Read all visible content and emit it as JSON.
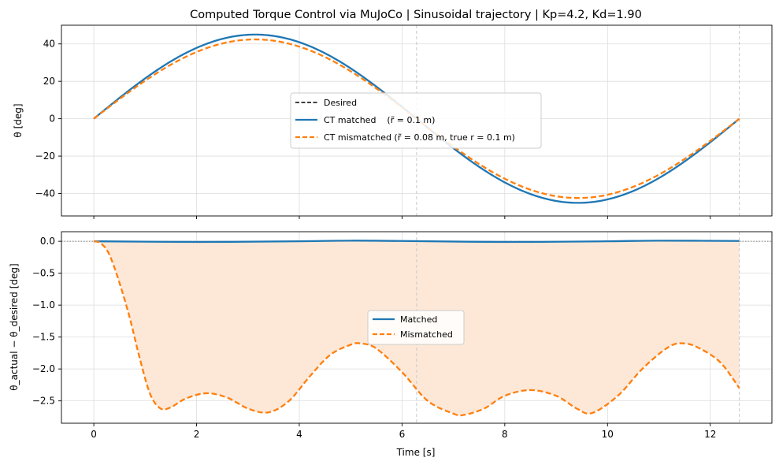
{
  "chart_data": [
    {
      "type": "line",
      "title": "Computed Torque Control via MuJoCo  |  Sinusoidal trajectory  |  Kp=4.2, Kd=1.90",
      "ylabel": "θ  [deg]",
      "xlabel": "",
      "xlim": [
        -0.63,
        13.2
      ],
      "ylim": [
        -52,
        50
      ],
      "xticks": [
        0,
        2,
        4,
        6,
        8,
        10,
        12
      ],
      "yticks": [
        -40,
        -20,
        0,
        20,
        40
      ],
      "grid": true,
      "legend_position": "center",
      "vlines": [
        6.283,
        12.566
      ],
      "series": [
        {
          "name": "Desired",
          "color": "#000000",
          "style": "dashed",
          "values": "45*sin(t/2)"
        },
        {
          "name": "CT matched    (r̃ = 0.1 m)",
          "color": "#1f77b4",
          "style": "solid"
        },
        {
          "name": "CT mismatched (r̃ = 0.08 m, true r = 0.1 m)",
          "color": "#ff7f0e",
          "style": "dashed"
        }
      ],
      "amplitude_desired": 45,
      "amplitude_mismatched": 42.4,
      "x_end": 12.566
    },
    {
      "type": "line",
      "title": "",
      "xlabel": "Time [s]",
      "ylabel": "θ_actual − θ_desired  [deg]",
      "xlim": [
        -0.63,
        13.2
      ],
      "ylim": [
        -2.85,
        0.15
      ],
      "xticks": [
        0,
        2,
        4,
        6,
        8,
        10,
        12
      ],
      "yticks": [
        0.0,
        -0.5,
        -1.0,
        -1.5,
        -2.0,
        -2.5
      ],
      "grid": true,
      "legend_position": "center",
      "hline": 0,
      "vlines": [
        6.283,
        12.566
      ],
      "series": [
        {
          "name": "Matched",
          "color": "#1f77b4",
          "style": "solid",
          "x": [
            0,
            2,
            4,
            5,
            6,
            8,
            10,
            11,
            12.566
          ],
          "y": [
            0.0,
            -0.01,
            0.0,
            0.01,
            0.005,
            -0.01,
            0.0,
            0.01,
            0.005
          ]
        },
        {
          "name": "Mismatched",
          "color": "#ff7f0e",
          "style": "dashed",
          "fill": "#fde8d8",
          "x": [
            0,
            0.08,
            0.15,
            0.25,
            0.35,
            0.5,
            0.7,
            0.9,
            1.1,
            1.3,
            1.5,
            1.8,
            2.2,
            2.6,
            3.0,
            3.4,
            3.8,
            4.2,
            4.6,
            5.0,
            5.2,
            5.5,
            6.0,
            6.5,
            7.0,
            7.2,
            7.6,
            8.0,
            8.5,
            9.0,
            9.4,
            9.7,
            10.2,
            10.7,
            11.2,
            11.5,
            11.8,
            12.2,
            12.566
          ],
          "y": [
            0.0,
            -0.01,
            -0.04,
            -0.13,
            -0.3,
            -0.65,
            -1.2,
            -1.85,
            -2.4,
            -2.62,
            -2.6,
            -2.46,
            -2.38,
            -2.45,
            -2.62,
            -2.68,
            -2.5,
            -2.12,
            -1.78,
            -1.62,
            -1.6,
            -1.68,
            -2.05,
            -2.5,
            -2.7,
            -2.72,
            -2.62,
            -2.42,
            -2.33,
            -2.42,
            -2.62,
            -2.69,
            -2.42,
            -1.98,
            -1.65,
            -1.6,
            -1.68,
            -1.9,
            -2.3
          ]
        }
      ]
    }
  ]
}
